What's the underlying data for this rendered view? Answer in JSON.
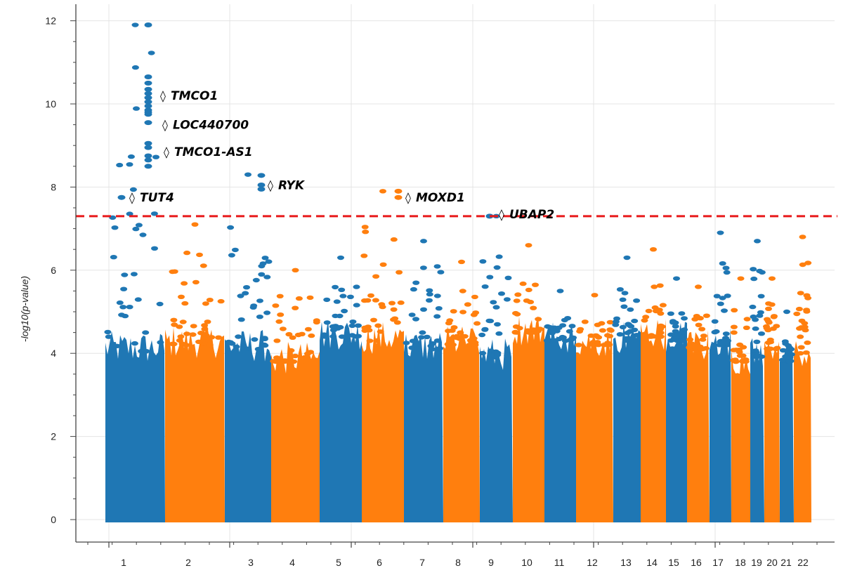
{
  "chart_data": {
    "type": "scatter",
    "title": "",
    "xlabel": "",
    "ylabel": "-log10(p-value)",
    "ylim": [
      -0.3,
      12.4
    ],
    "yticks": [
      0,
      2,
      4,
      6,
      8,
      10,
      12
    ],
    "grid": true,
    "legend": "none",
    "colors": {
      "odd": "#1f77b4",
      "even": "#ff7f0e",
      "threshold": "#e8191a"
    },
    "threshold": 7.3,
    "chromosomes": [
      {
        "label": "1",
        "mean": 4.05,
        "peak": 11.9
      },
      {
        "label": "2",
        "mean": 4.2,
        "peak": 7.1
      },
      {
        "label": "3",
        "mean": 4.1,
        "peak": 8.3
      },
      {
        "label": "4",
        "mean": 3.8,
        "peak": 6.0
      },
      {
        "label": "5",
        "mean": 4.4,
        "peak": 6.3
      },
      {
        "label": "6",
        "mean": 4.3,
        "peak": 7.9
      },
      {
        "label": "7",
        "mean": 4.1,
        "peak": 6.7
      },
      {
        "label": "8",
        "mean": 4.2,
        "peak": 6.2
      },
      {
        "label": "9",
        "mean": 3.9,
        "peak": 7.3
      },
      {
        "label": "10",
        "mean": 4.5,
        "peak": 6.6
      },
      {
        "label": "11",
        "mean": 4.3,
        "peak": 5.5
      },
      {
        "label": "12",
        "mean": 4.2,
        "peak": 5.4
      },
      {
        "label": "13",
        "mean": 4.3,
        "peak": 6.3
      },
      {
        "label": "14",
        "mean": 4.4,
        "peak": 6.5
      },
      {
        "label": "15",
        "mean": 4.3,
        "peak": 5.8
      },
      {
        "label": "16",
        "mean": 4.1,
        "peak": 5.6
      },
      {
        "label": "17",
        "mean": 4.2,
        "peak": 6.9
      },
      {
        "label": "18",
        "mean": 3.8,
        "peak": 5.8
      },
      {
        "label": "19",
        "mean": 3.9,
        "peak": 6.7
      },
      {
        "label": "20",
        "mean": 4.1,
        "peak": 5.8
      },
      {
        "label": "21",
        "mean": 3.8,
        "peak": 5.0
      },
      {
        "label": "22",
        "mean": 4.0,
        "peak": 6.8
      }
    ],
    "annotations": [
      {
        "label": "TMCO1",
        "chrom": "1",
        "y": 10.2
      },
      {
        "label": "LOC440700",
        "chrom": "1",
        "y": 9.5
      },
      {
        "label": "TMCO1-AS1",
        "chrom": "1",
        "y": 8.85
      },
      {
        "label": "TUT4",
        "chrom": "1",
        "y": 7.75
      },
      {
        "label": "RYK",
        "chrom": "3",
        "y": 8.05
      },
      {
        "label": "MOXD1",
        "chrom": "6",
        "y": 7.75
      },
      {
        "label": "UBAP2",
        "chrom": "9",
        "y": 7.35
      }
    ]
  }
}
